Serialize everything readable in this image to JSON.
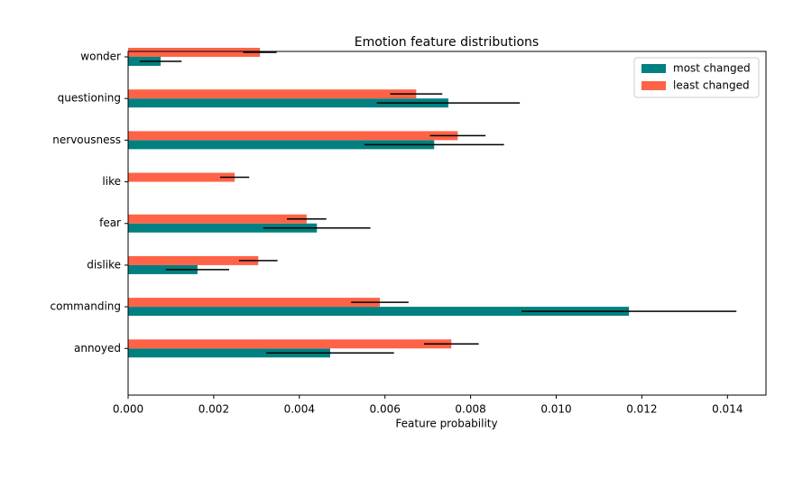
{
  "chart_data": {
    "type": "barh",
    "title": "Emotion feature distributions",
    "x_label": "Feature probability",
    "categories": [
      "annoyed",
      "commanding",
      "dislike",
      "fear",
      "like",
      "nervousness",
      "questioning",
      "wonder"
    ],
    "series": [
      {
        "name": "most changed",
        "color": "#008080",
        "values": [
          0.00472,
          0.0117,
          0.00162,
          0.00441,
          0,
          0.00715,
          0.00748,
          0.00076
        ],
        "errors": [
          0.00149,
          0.00251,
          0.00074,
          0.00125,
          0,
          0.00163,
          0.00167,
          0.00049
        ]
      },
      {
        "name": "least changed",
        "color": "#ff6347",
        "values": [
          0.00755,
          0.00588,
          0.00304,
          0.00417,
          0.00249,
          0.0077,
          0.00673,
          0.00308
        ],
        "errors": [
          0.00064,
          0.00067,
          0.00045,
          0.00046,
          0.00034,
          0.00065,
          0.00061,
          0.00039
        ]
      }
    ],
    "xlim": [
      0,
      0.0149
    ],
    "xticks": [
      {
        "value": 0,
        "label": "0.000"
      },
      {
        "value": 0.002,
        "label": "0.002"
      },
      {
        "value": 0.004,
        "label": "0.004"
      },
      {
        "value": 0.006,
        "label": "0.006"
      },
      {
        "value": 0.008,
        "label": "0.008"
      },
      {
        "value": 0.01,
        "label": "0.010"
      },
      {
        "value": 0.012,
        "label": "0.012"
      },
      {
        "value": 0.014,
        "label": "0.014"
      }
    ],
    "legend": "upper right"
  }
}
